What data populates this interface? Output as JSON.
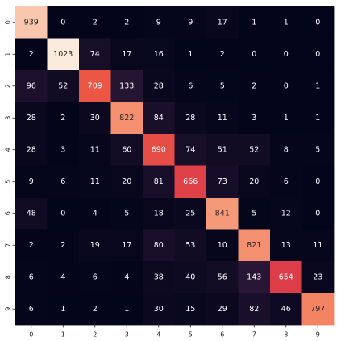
{
  "chart_data": {
    "type": "heatmap",
    "title": "",
    "xlabel": "",
    "ylabel": "",
    "x_labels": [
      "0",
      "1",
      "2",
      "3",
      "4",
      "5",
      "6",
      "7",
      "8",
      "9"
    ],
    "y_labels": [
      "0",
      "1",
      "2",
      "3",
      "4",
      "5",
      "6",
      "7",
      "8",
      "9"
    ],
    "values": [
      [
        939,
        0,
        2,
        2,
        9,
        9,
        17,
        1,
        1,
        0
      ],
      [
        2,
        1023,
        74,
        17,
        16,
        1,
        2,
        0,
        0,
        0
      ],
      [
        96,
        52,
        709,
        133,
        28,
        6,
        5,
        2,
        0,
        1
      ],
      [
        28,
        2,
        30,
        822,
        84,
        28,
        11,
        3,
        1,
        1
      ],
      [
        28,
        3,
        11,
        60,
        690,
        74,
        51,
        52,
        8,
        5
      ],
      [
        9,
        6,
        11,
        20,
        81,
        666,
        73,
        20,
        6,
        0
      ],
      [
        48,
        0,
        4,
        5,
        18,
        25,
        841,
        5,
        12,
        0
      ],
      [
        2,
        2,
        19,
        17,
        80,
        53,
        10,
        821,
        13,
        11
      ],
      [
        6,
        4,
        6,
        4,
        38,
        40,
        56,
        143,
        654,
        23
      ],
      [
        6,
        1,
        2,
        1,
        30,
        15,
        29,
        82,
        46,
        797
      ]
    ],
    "vmin": 0,
    "vmax": 1023,
    "colormap": [
      "#03051a",
      "#2a1636",
      "#5c1e4e",
      "#951d56",
      "#cb1b4f",
      "#f06043",
      "#f6ad8a",
      "#faebdd"
    ],
    "annotation_color_light": "#ffffff",
    "annotation_color_dark": "#262626",
    "tick_color": "#262626",
    "grid": false,
    "legend": "none"
  }
}
